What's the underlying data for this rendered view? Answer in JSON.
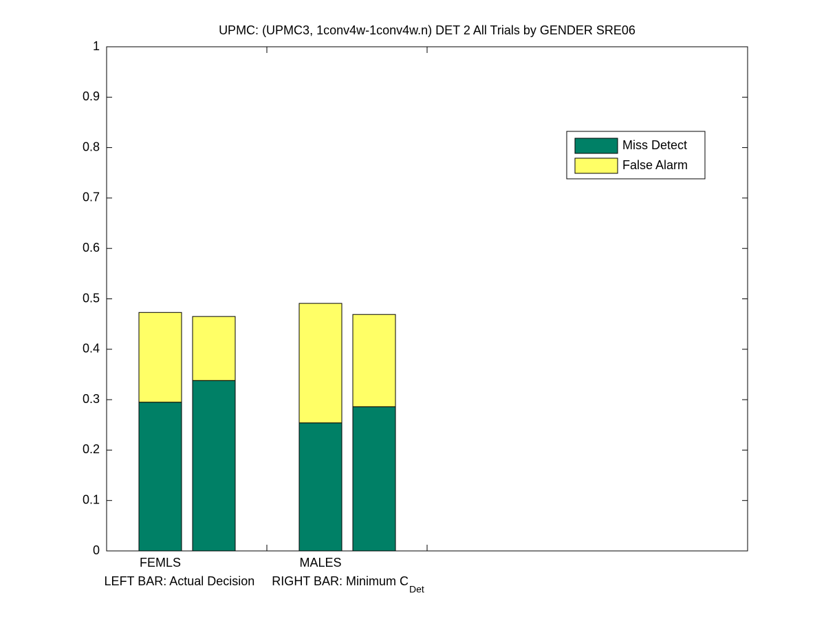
{
  "chart_data": {
    "type": "bar",
    "stacked": true,
    "title": "UPMC: (UPMC3, 1conv4w-1conv4w.n) DET 2 All Trials by GENDER SRE06",
    "x_label": "LEFT BAR: Actual Decision     RIGHT BAR: Minimum C",
    "x_label_subscript": "Det",
    "categories": [
      "FEMLS",
      null,
      "MALES",
      null
    ],
    "series": [
      {
        "name": "Miss Detect",
        "color": "#008066",
        "values": [
          0.295,
          0.338,
          0.254,
          0.286
        ]
      },
      {
        "name": "False Alarm",
        "color": "#ffff66",
        "values": [
          0.178,
          0.127,
          0.237,
          0.183
        ]
      }
    ],
    "ylim": [
      0,
      1
    ],
    "yticks": [
      0,
      0.1,
      0.2,
      0.3,
      0.4,
      0.5,
      0.6,
      0.7,
      0.8,
      0.9,
      1
    ],
    "grid": false,
    "legend": "upper-right"
  }
}
